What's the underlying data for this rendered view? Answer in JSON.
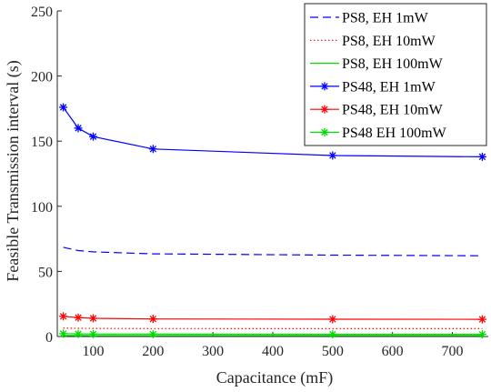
{
  "chart_data": {
    "type": "line",
    "xlabel": "Capacitance (mF)",
    "ylabel": "Feasible Transmission interval (s)",
    "xlim": [
      40,
      760
    ],
    "ylim": [
      0,
      250
    ],
    "xticks": [
      100,
      200,
      300,
      400,
      500,
      600,
      700
    ],
    "yticks": [
      0,
      50,
      100,
      150,
      200,
      250
    ],
    "grid": false,
    "legend_position": "top-right",
    "series": [
      {
        "name": "PS8, EH 1mW",
        "color": "#0000ff",
        "style": "dashed",
        "marker": "none",
        "x": [
          50,
          75,
          100,
          200,
          500,
          750
        ],
        "values": [
          68.5,
          66,
          65,
          63.5,
          62.5,
          62
        ]
      },
      {
        "name": "PS8, EH 10mW",
        "color": "#ff0000",
        "style": "dotted",
        "marker": "none",
        "x": [
          50,
          75,
          100,
          200,
          500,
          750
        ],
        "values": [
          6.5,
          6.3,
          6.2,
          6.1,
          6.0,
          6.0
        ]
      },
      {
        "name": "PS8, EH 100mW",
        "color": "#00dd00",
        "style": "solid",
        "marker": "none",
        "x": [
          50,
          75,
          100,
          200,
          500,
          750
        ],
        "values": [
          0.8,
          0.8,
          0.7,
          0.7,
          0.7,
          0.7
        ]
      },
      {
        "name": "PS48, EH 1mW",
        "color": "#0000ff",
        "style": "solid",
        "marker": "asterisk",
        "x": [
          50,
          75,
          100,
          200,
          500,
          750
        ],
        "values": [
          176,
          160,
          153.5,
          144,
          139,
          138
        ]
      },
      {
        "name": "PS48, EH 10mW",
        "color": "#ff0000",
        "style": "solid",
        "marker": "asterisk",
        "x": [
          50,
          75,
          100,
          200,
          500,
          750
        ],
        "values": [
          15.5,
          14.5,
          14,
          13.5,
          13.3,
          13.2
        ]
      },
      {
        "name": "PS48 EH 100mW",
        "color": "#00dd00",
        "style": "solid",
        "marker": "asterisk",
        "x": [
          50,
          75,
          100,
          200,
          500,
          750
        ],
        "values": [
          2.2,
          2.0,
          1.9,
          1.8,
          1.7,
          1.7
        ]
      }
    ]
  }
}
